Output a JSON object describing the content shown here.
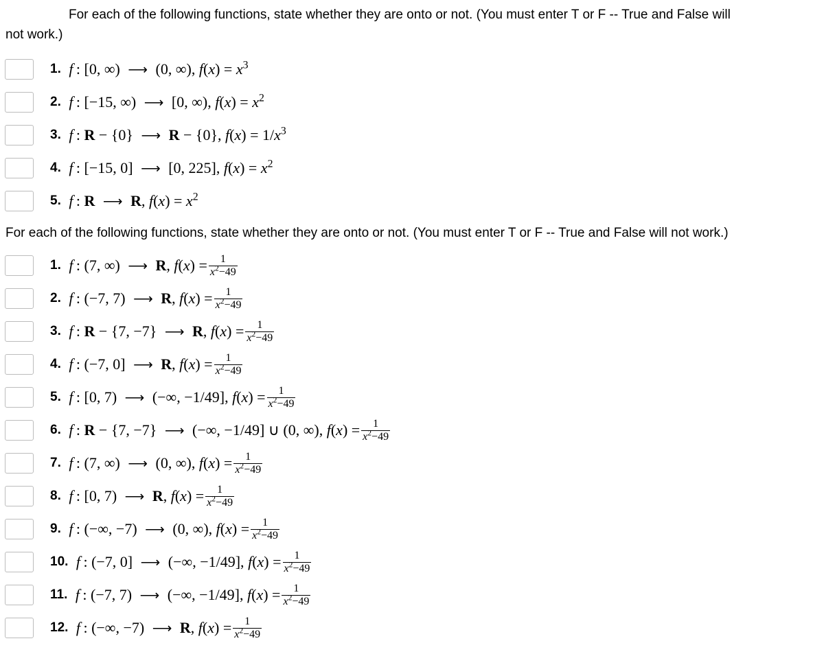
{
  "intro1_pad": "For each of the following functions, state whether they are onto or not. (You must enter T or F -- True and False will",
  "intro1_rest": "not work.)",
  "intro2": "For each of the following functions, state whether they are onto or not. (You must enter T or F -- True and False will not work.)",
  "s1": {
    "q1_num": "1.",
    "q2_num": "2.",
    "q3_num": "3.",
    "q4_num": "4.",
    "q5_num": "5."
  },
  "s2": {
    "q1_num": "1.",
    "q2_num": "2.",
    "q3_num": "3.",
    "q4_num": "4.",
    "q5_num": "5.",
    "q6_num": "6.",
    "q7_num": "7.",
    "q8_num": "8.",
    "q9_num": "9.",
    "q10_num": "10.",
    "q11_num": "11.",
    "q12_num": "12."
  },
  "math": {
    "f_colon": "f :",
    "arrow": "⟶",
    "fx_eq": "f(x) =",
    "R": "R",
    "minus": "−",
    "set_open": "{",
    "set_close": "}",
    "zero": "0",
    "comma": ",",
    "inf": "∞",
    "neg_inf": "−∞",
    "lparen": "(",
    "rparen": ")",
    "lbrack": "[",
    "rbrack": "]",
    "x": "x",
    "sup2": "2",
    "sup3": "3",
    "one": "1",
    "slash": "/",
    "one_over": "1",
    "den_x2_49": "x²−49",
    "seven": "7",
    "neg_seven": "−7",
    "fifteen": "15",
    "two25": "225",
    "neg_1_49": "−1/49",
    "cup": "∪",
    "neg15": "−15"
  }
}
